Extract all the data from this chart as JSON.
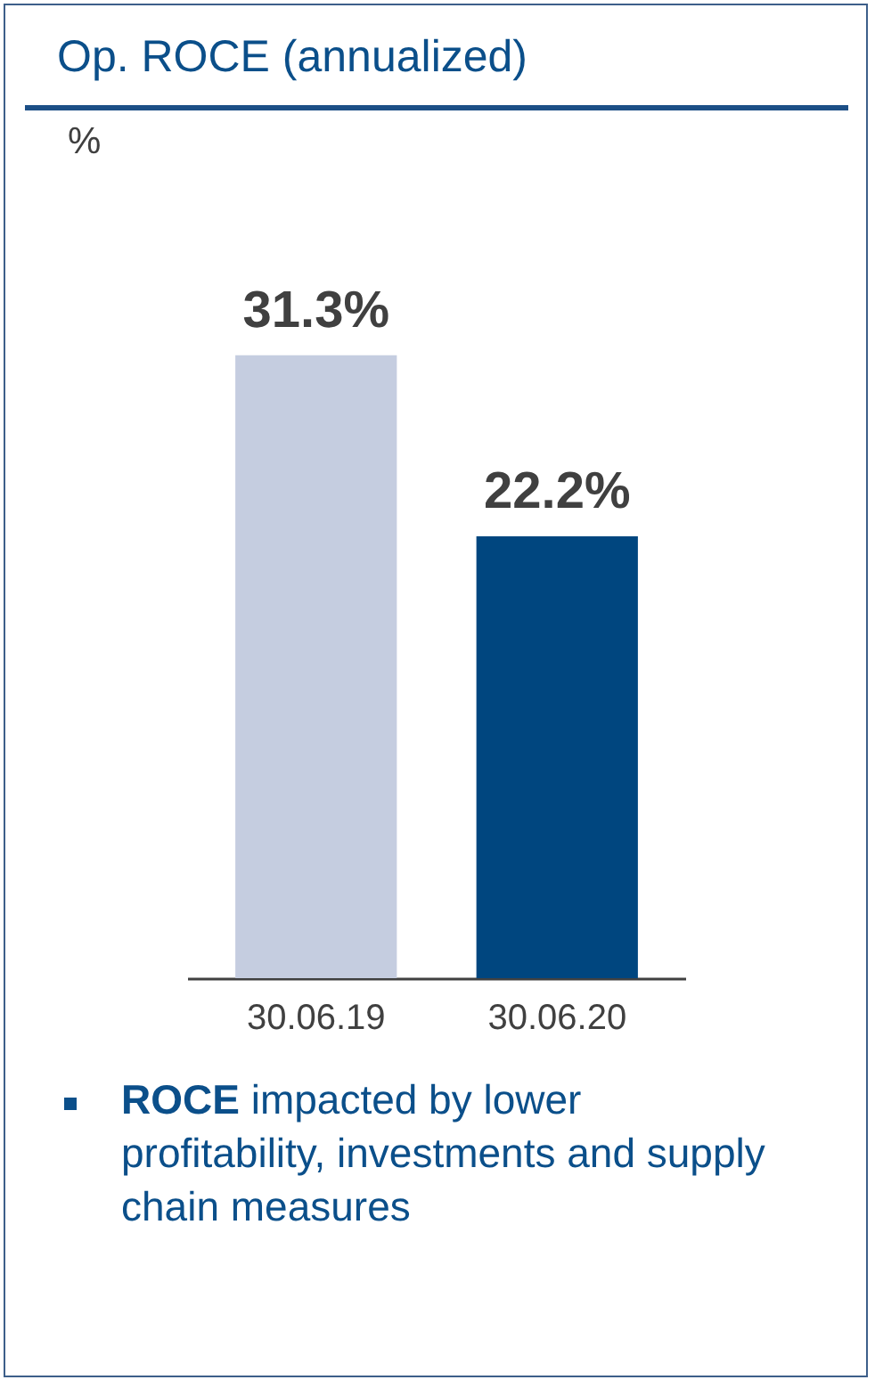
{
  "chart_data": {
    "type": "bar",
    "title": "Op. ROCE (annualized)",
    "categories": [
      "30.06.19",
      "30.06.20"
    ],
    "values": [
      31.3,
      22.2
    ],
    "colors": [
      "#c5cde0",
      "#00467f"
    ],
    "data_labels": true,
    "value_labels": [
      "31.3%",
      "22.2%"
    ],
    "annotations": [
      "%",
      "ROCE impacted by lower profitability, investments and supply chain measures"
    ]
  }
}
